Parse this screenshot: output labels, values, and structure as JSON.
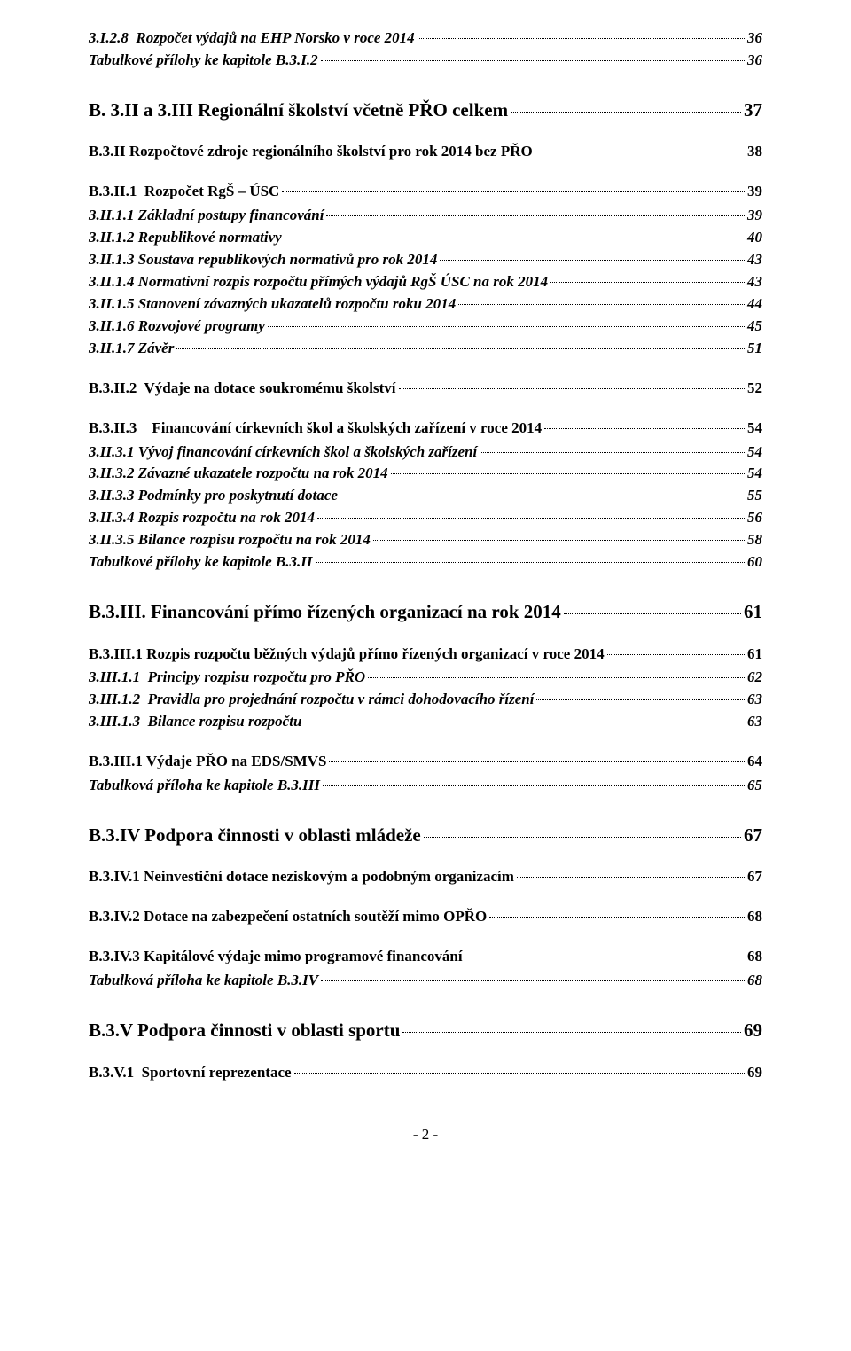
{
  "toc": [
    {
      "level": "bi",
      "text": "3.I.2.8  Rozpočet výdajů na EHP Norsko v roce 2014",
      "page": "36"
    },
    {
      "level": "bi",
      "text": "Tabulkové přílohy ke kapitole B.3.I.2",
      "page": "36"
    },
    {
      "level": "h1",
      "text": "B. 3.II a 3.III Regionální školství včetně PŘO celkem",
      "page": "37"
    },
    {
      "level": "h2",
      "text": "B.3.II Rozpočtové zdroje regionálního školství pro rok 2014 bez PŘO",
      "page": "38"
    },
    {
      "level": "h2",
      "text": "B.3.II.1  Rozpočet RgŠ – ÚSC",
      "page": "39"
    },
    {
      "level": "bi",
      "text": "3.II.1.1 Základní postupy financování",
      "page": "39"
    },
    {
      "level": "bi",
      "text": "3.II.1.2 Republikové normativy",
      "page": "40"
    },
    {
      "level": "bi",
      "text": "3.II.1.3 Soustava republikových normativů pro rok 2014",
      "page": "43"
    },
    {
      "level": "bi",
      "text": "3.II.1.4 Normativní rozpis rozpočtu přímých výdajů RgŠ ÚSC na rok 2014",
      "page": "43"
    },
    {
      "level": "bi",
      "text": "3.II.1.5 Stanovení závazných ukazatelů rozpočtu roku 2014",
      "page": "44"
    },
    {
      "level": "bi",
      "text": "3.II.1.6 Rozvojové programy",
      "page": "45"
    },
    {
      "level": "bi",
      "text": "3.II.1.7 Závěr",
      "page": "51"
    },
    {
      "level": "h2",
      "text": "B.3.II.2  Výdaje na dotace soukromému školství",
      "page": "52"
    },
    {
      "level": "h2",
      "text": "B.3.II.3    Financování církevních škol a školských zařízení v roce 2014",
      "page": "54"
    },
    {
      "level": "bi",
      "text": "3.II.3.1 Vývoj financování církevních škol a školských zařízení",
      "page": "54"
    },
    {
      "level": "bi",
      "text": "3.II.3.2 Závazné ukazatele rozpočtu na rok 2014",
      "page": "54"
    },
    {
      "level": "bi",
      "text": "3.II.3.3 Podmínky pro poskytnutí dotace",
      "page": "55"
    },
    {
      "level": "bi",
      "text": "3.II.3.4 Rozpis rozpočtu na rok 2014",
      "page": "56"
    },
    {
      "level": "bi",
      "text": "3.II.3.5 Bilance rozpisu rozpočtu na rok 2014",
      "page": "58"
    },
    {
      "level": "bi",
      "text": "Tabulkové přílohy ke kapitole B.3.II",
      "page": "60"
    },
    {
      "level": "h1",
      "text": "B.3.III. Financování přímo řízených organizací na rok 2014",
      "page": "61"
    },
    {
      "level": "h2",
      "text": "B.3.III.1 Rozpis rozpočtu běžných výdajů přímo řízených organizací v roce 2014",
      "page": "61"
    },
    {
      "level": "bi",
      "text": "3.III.1.1  Principy rozpisu rozpočtu pro PŘO",
      "page": "62"
    },
    {
      "level": "bi",
      "text": "3.III.1.2  Pravidla pro projednání rozpočtu v rámci dohodovacího řízení",
      "page": "63"
    },
    {
      "level": "bi",
      "text": "3.III.1.3  Bilance rozpisu rozpočtu",
      "page": "63"
    },
    {
      "level": "h2",
      "text": "B.3.III.1 Výdaje PŘO na EDS/SMVS",
      "page": "64"
    },
    {
      "level": "bi",
      "text": "Tabulková příloha ke kapitole B.3.III",
      "page": "65"
    },
    {
      "level": "h1",
      "text": "B.3.IV Podpora činnosti v oblasti mládeže",
      "page": "67"
    },
    {
      "level": "h2",
      "text": "B.3.IV.1 Neinvestiční dotace neziskovým a podobným organizacím",
      "page": "67"
    },
    {
      "level": "h2",
      "text": "B.3.IV.2 Dotace na zabezpečení ostatních soutěží mimo OPŘO",
      "page": "68"
    },
    {
      "level": "h2",
      "text": "B.3.IV.3 Kapitálové výdaje mimo programové financování",
      "page": "68"
    },
    {
      "level": "bi",
      "text": "Tabulková příloha ke kapitole B.3.IV",
      "page": "68"
    },
    {
      "level": "h1",
      "text": "B.3.V Podpora činnosti v oblasti sportu",
      "page": "69"
    },
    {
      "level": "h2",
      "text": "B.3.V.1  Sportovní reprezentace",
      "page": "69"
    }
  ],
  "footer": "- 2 -"
}
